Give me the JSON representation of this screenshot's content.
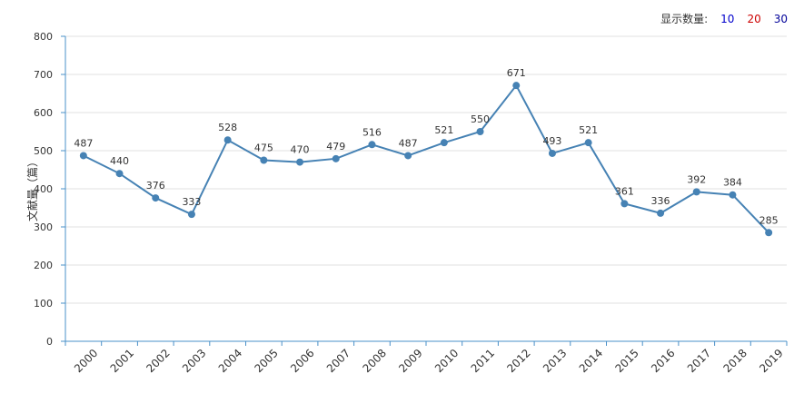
{
  "controls": {
    "label": "显示数量:",
    "options": [
      "10",
      "20",
      "30"
    ]
  },
  "chart_data": {
    "type": "line",
    "ylabel": "文献量（篇）",
    "ylim": [
      0,
      800
    ],
    "yticks": [
      0,
      100,
      200,
      300,
      400,
      500,
      600,
      700,
      800
    ],
    "categories": [
      "2000",
      "2001",
      "2002",
      "2003",
      "2004",
      "2005",
      "2006",
      "2007",
      "2008",
      "2009",
      "2010",
      "2011",
      "2012",
      "2013",
      "2014",
      "2015",
      "2016",
      "2017",
      "2018",
      "2019"
    ],
    "series": [
      {
        "values": [
          487,
          440,
          376,
          333,
          528,
          475,
          470,
          479,
          516,
          487,
          521,
          550,
          671,
          493,
          521,
          361,
          336,
          392,
          384,
          285
        ]
      }
    ],
    "grid": true,
    "color": "#4682b4"
  }
}
